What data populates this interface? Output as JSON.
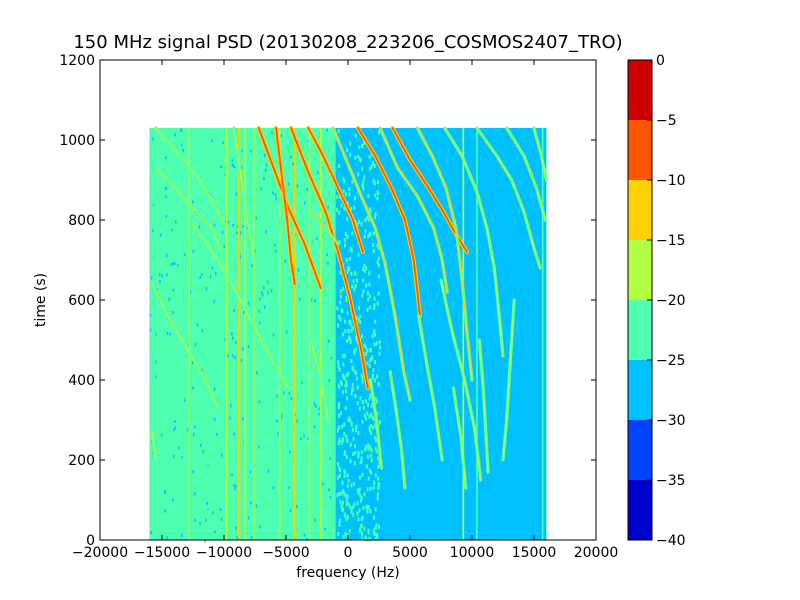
{
  "chart_data": {
    "type": "heatmap",
    "title": "150 MHz signal PSD (20130208_223206_COSMOS2407_TRO)",
    "xlabel": "frequency (Hz)",
    "ylabel": "time (s)",
    "xlim": [
      -20000,
      20000
    ],
    "ylim": [
      0,
      1200
    ],
    "xticks": [
      -20000,
      -15000,
      -10000,
      -5000,
      0,
      5000,
      10000,
      15000,
      20000
    ],
    "xtick_labels": [
      "−20000",
      "−15000",
      "−10000",
      "−5000",
      "0",
      "5000",
      "10000",
      "15000",
      "20000"
    ],
    "yticks": [
      0,
      200,
      400,
      600,
      800,
      1000,
      1200
    ],
    "ytick_labels": [
      "0",
      "200",
      "400",
      "600",
      "800",
      "1000",
      "1200"
    ],
    "data_extent": {
      "x": [
        -16000,
        16000
      ],
      "y": [
        0,
        1030
      ]
    },
    "background_level": -27.5,
    "colorbar": {
      "min": -40,
      "max": 0,
      "ticks": [
        0,
        -5,
        -10,
        -15,
        -20,
        -25,
        -30,
        -35,
        -40
      ],
      "tick_labels": [
        "0",
        "−5",
        "−10",
        "−15",
        "−20",
        "−25",
        "−30",
        "−35",
        "−40"
      ],
      "bands": [
        {
          "from": -40,
          "to": -35,
          "color": "#0000cc"
        },
        {
          "from": -35,
          "to": -30,
          "color": "#0044ff"
        },
        {
          "from": -30,
          "to": -25,
          "color": "#00c0ff"
        },
        {
          "from": -25,
          "to": -20,
          "color": "#4dffaf"
        },
        {
          "from": -20,
          "to": -15,
          "color": "#b0ff40"
        },
        {
          "from": -15,
          "to": -10,
          "color": "#ffd000"
        },
        {
          "from": -10,
          "to": -5,
          "color": "#ff5500"
        },
        {
          "from": -5,
          "to": 0,
          "color": "#cc0000"
        }
      ]
    },
    "regions": [
      {
        "x": [
          -16000,
          -1000
        ],
        "level": -22.5
      },
      {
        "x": [
          -1000,
          2500
        ],
        "level": -22.5,
        "density": 0.55
      }
    ],
    "vertical_lines": [
      {
        "x": -15600,
        "level": -22.5
      },
      {
        "x": -12800,
        "level": -17.5
      },
      {
        "x": -11200,
        "level": -22.5
      },
      {
        "x": -9800,
        "level": -17.5
      },
      {
        "x": -8800,
        "level": -12.5
      },
      {
        "x": -8300,
        "level": -17.5
      },
      {
        "x": -7600,
        "level": -17.5
      },
      {
        "x": -5500,
        "level": -17.5
      },
      {
        "x": -4300,
        "level": -12.5
      },
      {
        "x": -3100,
        "level": -17.5
      },
      {
        "x": -2200,
        "level": -17.5
      },
      {
        "x": 9300,
        "level": -17.5
      },
      {
        "x": 10400,
        "level": -22.5
      },
      {
        "x": 15700,
        "level": -22.5
      }
    ],
    "tracks": [
      {
        "points": [
          [
            -15600,
            930
          ],
          [
            -14000,
            880
          ],
          [
            -12500,
            830
          ],
          [
            -11000,
            780
          ],
          [
            -10200,
            720
          ]
        ],
        "level": -17.5
      },
      {
        "points": [
          [
            -15800,
            640
          ],
          [
            -14500,
            560
          ],
          [
            -13000,
            480
          ],
          [
            -11500,
            400
          ],
          [
            -10500,
            330
          ]
        ],
        "level": -17.5
      },
      {
        "points": [
          [
            -15800,
            270
          ],
          [
            -15500,
            200
          ]
        ],
        "level": -17.5
      },
      {
        "points": [
          [
            -15500,
            1030
          ],
          [
            -13500,
            960
          ],
          [
            -12000,
            900
          ],
          [
            -10800,
            840
          ],
          [
            -9800,
            780
          ]
        ],
        "level": -17.5
      },
      {
        "points": [
          [
            -12500,
            790
          ],
          [
            -10500,
            700
          ],
          [
            -8500,
            590
          ],
          [
            -6500,
            470
          ],
          [
            -4800,
            380
          ]
        ],
        "level": -17.5
      },
      {
        "points": [
          [
            -9200,
            1030
          ],
          [
            -8600,
            900
          ],
          [
            -8000,
            780
          ],
          [
            -7500,
            680
          ]
        ],
        "level": -17.5
      },
      {
        "points": [
          [
            -7200,
            1030
          ],
          [
            -6000,
            930
          ],
          [
            -4800,
            830
          ],
          [
            -3500,
            740
          ],
          [
            -2200,
            630
          ]
        ],
        "level": -7.5
      },
      {
        "points": [
          [
            -5800,
            1030
          ],
          [
            -5300,
            900
          ],
          [
            -4900,
            800
          ],
          [
            -4600,
            700
          ],
          [
            -4300,
            640
          ]
        ],
        "level": -7.5
      },
      {
        "points": [
          [
            -4600,
            1030
          ],
          [
            -3200,
            920
          ],
          [
            -1800,
            820
          ],
          [
            -800,
            720
          ],
          [
            200,
            600
          ],
          [
            1100,
            470
          ],
          [
            1600,
            380
          ]
        ],
        "level": -7.5
      },
      {
        "points": [
          [
            -3200,
            1030
          ],
          [
            -2000,
            960
          ],
          [
            -800,
            880
          ],
          [
            400,
            800
          ],
          [
            1200,
            720
          ]
        ],
        "level": -7.5
      },
      {
        "points": [
          [
            -1200,
            1030
          ],
          [
            0,
            940
          ],
          [
            1200,
            850
          ],
          [
            2200,
            780
          ],
          [
            3000,
            690
          ],
          [
            3800,
            560
          ],
          [
            4500,
            420
          ],
          [
            5000,
            350
          ]
        ],
        "level": -12.5
      },
      {
        "points": [
          [
            800,
            1030
          ],
          [
            2200,
            960
          ],
          [
            3500,
            880
          ],
          [
            4600,
            800
          ],
          [
            5300,
            700
          ],
          [
            5600,
            620
          ],
          [
            5800,
            560
          ]
        ],
        "level": -7.5
      },
      {
        "points": [
          [
            -2800,
            820
          ],
          [
            -1800,
            780
          ],
          [
            -800,
            740
          ]
        ],
        "level": -12.5
      },
      {
        "points": [
          [
            2600,
            1030
          ],
          [
            4000,
            930
          ],
          [
            5600,
            860
          ],
          [
            6900,
            780
          ],
          [
            7600,
            700
          ],
          [
            8000,
            620
          ]
        ],
        "level": -12.5
      },
      {
        "points": [
          [
            3600,
            1030
          ],
          [
            5000,
            950
          ],
          [
            6500,
            880
          ],
          [
            7700,
            820
          ],
          [
            8600,
            770
          ],
          [
            9600,
            720
          ]
        ],
        "level": -7.5
      },
      {
        "points": [
          [
            5600,
            1030
          ],
          [
            6800,
            960
          ],
          [
            7900,
            880
          ],
          [
            8700,
            780
          ],
          [
            9200,
            650
          ],
          [
            9600,
            520
          ],
          [
            10000,
            400
          ]
        ],
        "level": -12.5
      },
      {
        "points": [
          [
            7800,
            1030
          ],
          [
            9200,
            960
          ],
          [
            10400,
            870
          ],
          [
            11200,
            780
          ],
          [
            11800,
            680
          ],
          [
            12200,
            560
          ],
          [
            12500,
            460
          ]
        ],
        "level": -17.5
      },
      {
        "points": [
          [
            10400,
            1030
          ],
          [
            12000,
            960
          ],
          [
            13200,
            900
          ],
          [
            14200,
            820
          ],
          [
            14900,
            740
          ],
          [
            15500,
            680
          ]
        ],
        "level": -17.5
      },
      {
        "points": [
          [
            12800,
            1030
          ],
          [
            14200,
            960
          ],
          [
            15200,
            880
          ],
          [
            15900,
            800
          ]
        ],
        "level": -17.5
      },
      {
        "points": [
          [
            13400,
            600
          ],
          [
            13100,
            450
          ],
          [
            12800,
            300
          ],
          [
            12500,
            200
          ]
        ],
        "level": -17.5
      },
      {
        "points": [
          [
            15000,
            1030
          ],
          [
            15600,
            960
          ],
          [
            16000,
            900
          ]
        ],
        "level": -17.5
      },
      {
        "points": [
          [
            5700,
            560
          ],
          [
            6300,
            450
          ],
          [
            7000,
            330
          ],
          [
            7600,
            200
          ]
        ],
        "level": -17.5
      },
      {
        "points": [
          [
            7500,
            650
          ],
          [
            8400,
            520
          ],
          [
            9400,
            400
          ],
          [
            10200,
            280
          ],
          [
            10700,
            150
          ]
        ],
        "level": -17.5
      },
      {
        "points": [
          [
            10600,
            500
          ],
          [
            10900,
            380
          ],
          [
            11100,
            280
          ],
          [
            11300,
            170
          ]
        ],
        "level": -17.5
      },
      {
        "points": [
          [
            3400,
            420
          ],
          [
            3900,
            320
          ],
          [
            4300,
            230
          ],
          [
            4600,
            130
          ]
        ],
        "level": -17.5
      },
      {
        "points": [
          [
            8500,
            380
          ],
          [
            9100,
            260
          ],
          [
            9500,
            130
          ]
        ],
        "level": -17.5
      },
      {
        "points": [
          [
            1800,
            400
          ],
          [
            2300,
            300
          ],
          [
            2700,
            180
          ]
        ],
        "level": -17.5
      },
      {
        "points": [
          [
            -3000,
            500
          ],
          [
            -2300,
            420
          ],
          [
            -1600,
            300
          ]
        ],
        "level": -17.5
      }
    ]
  }
}
